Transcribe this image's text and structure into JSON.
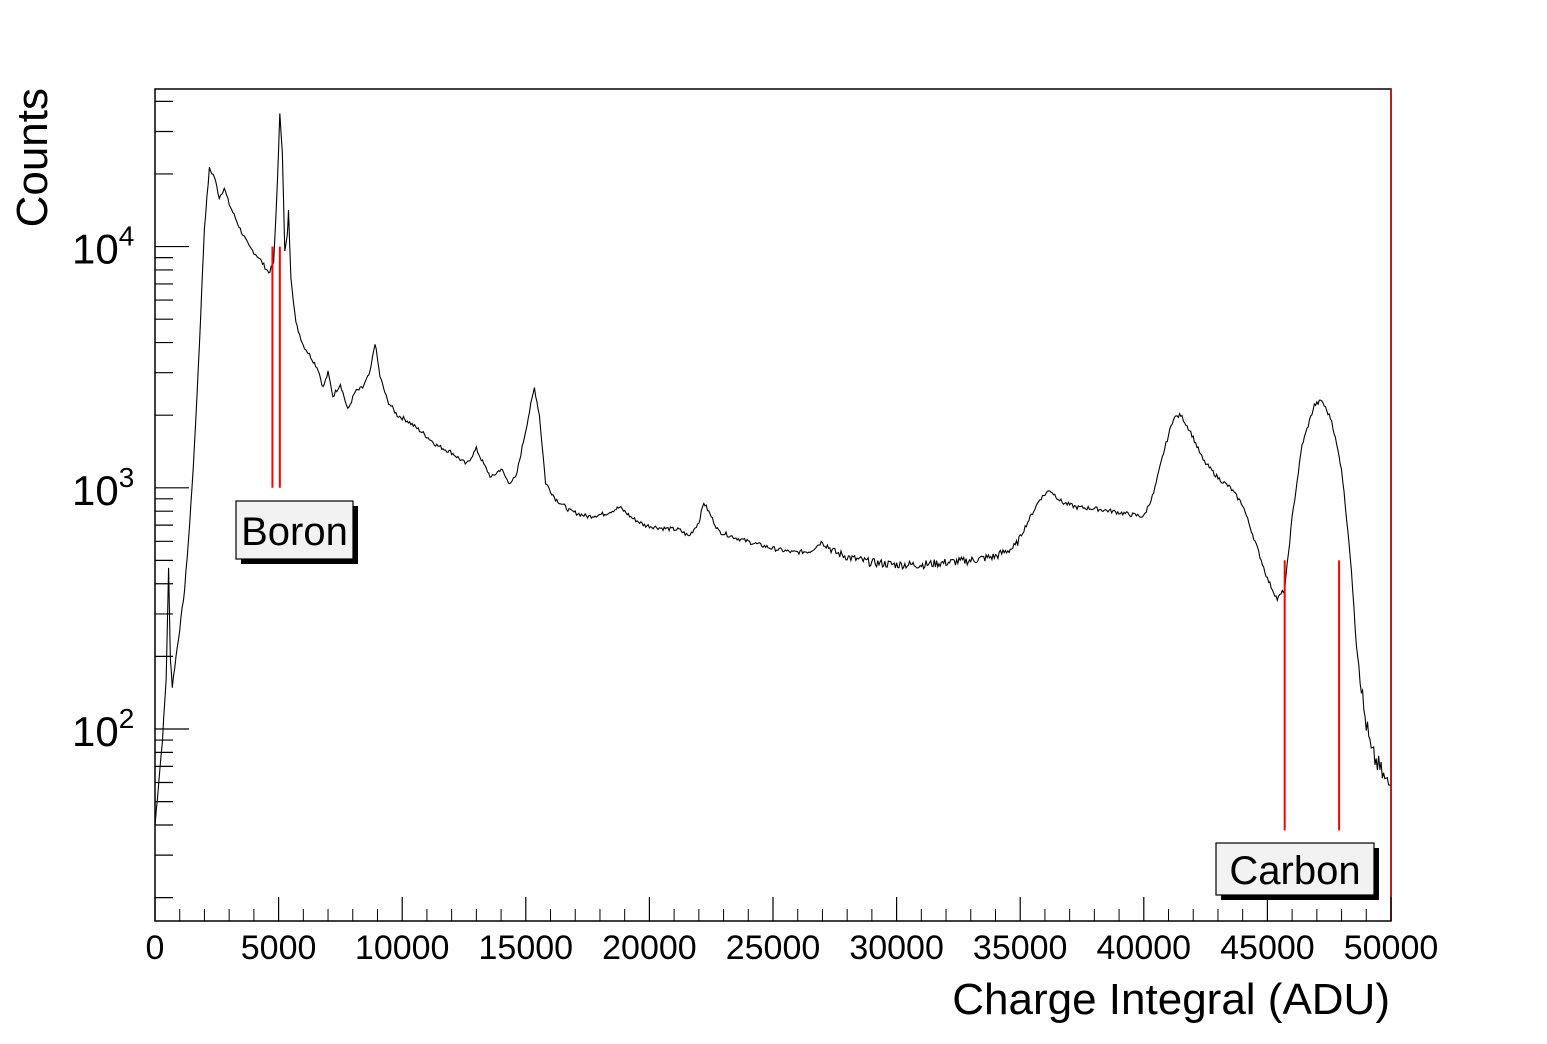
{
  "chart_data": {
    "type": "line",
    "xlabel": "Charge Integral (ADU)",
    "ylabel": "Counts",
    "xlim": [
      0,
      50000
    ],
    "ylim": [
      16,
      45000
    ],
    "yscale": "log",
    "grid": false,
    "x_ticks": [
      0,
      5000,
      10000,
      15000,
      20000,
      25000,
      30000,
      35000,
      40000,
      45000,
      50000
    ],
    "x_tick_labels": [
      "0",
      "5000",
      "10000",
      "15000",
      "20000",
      "25000",
      "30000",
      "35000",
      "40000",
      "45000",
      "50000"
    ],
    "y_decades": [
      {
        "value": 100,
        "base": "10",
        "exp": "2"
      },
      {
        "value": 1000,
        "base": "10",
        "exp": "3"
      },
      {
        "value": 10000,
        "base": "10",
        "exp": "4"
      }
    ],
    "series": [
      {
        "color": "#000000",
        "points": [
          [
            0,
            40
          ],
          [
            150,
            60
          ],
          [
            300,
            90
          ],
          [
            450,
            160
          ],
          [
            550,
            460
          ],
          [
            620,
            200
          ],
          [
            700,
            150
          ],
          [
            850,
            200
          ],
          [
            1000,
            260
          ],
          [
            1200,
            380
          ],
          [
            1400,
            700
          ],
          [
            1600,
            1500
          ],
          [
            1800,
            4000
          ],
          [
            2000,
            12000
          ],
          [
            2200,
            21000
          ],
          [
            2400,
            19500
          ],
          [
            2600,
            16000
          ],
          [
            2800,
            17500
          ],
          [
            3000,
            15000
          ],
          [
            3200,
            13500
          ],
          [
            3500,
            11500
          ],
          [
            3800,
            10000
          ],
          [
            4200,
            9000
          ],
          [
            4600,
            7800
          ],
          [
            4800,
            8500
          ],
          [
            4900,
            14000
          ],
          [
            5000,
            25000
          ],
          [
            5050,
            36000
          ],
          [
            5150,
            25000
          ],
          [
            5250,
            9500
          ],
          [
            5350,
            11000
          ],
          [
            5400,
            14000
          ],
          [
            5500,
            7500
          ],
          [
            5700,
            4800
          ],
          [
            6000,
            3900
          ],
          [
            6300,
            3500
          ],
          [
            6600,
            3100
          ],
          [
            6800,
            2600
          ],
          [
            7000,
            3000
          ],
          [
            7200,
            2400
          ],
          [
            7500,
            2700
          ],
          [
            7800,
            2100
          ],
          [
            8100,
            2500
          ],
          [
            8400,
            2600
          ],
          [
            8700,
            3000
          ],
          [
            8900,
            4000
          ],
          [
            9100,
            2900
          ],
          [
            9400,
            2300
          ],
          [
            9800,
            2000
          ],
          [
            10200,
            1900
          ],
          [
            10800,
            1700
          ],
          [
            11400,
            1500
          ],
          [
            12000,
            1400
          ],
          [
            12600,
            1250
          ],
          [
            13000,
            1450
          ],
          [
            13300,
            1250
          ],
          [
            13600,
            1100
          ],
          [
            14000,
            1200
          ],
          [
            14300,
            1050
          ],
          [
            14600,
            1100
          ],
          [
            14900,
            1550
          ],
          [
            15200,
            2200
          ],
          [
            15350,
            2600
          ],
          [
            15550,
            2000
          ],
          [
            15800,
            1050
          ],
          [
            16200,
            900
          ],
          [
            16800,
            800
          ],
          [
            17500,
            760
          ],
          [
            18200,
            780
          ],
          [
            18800,
            830
          ],
          [
            19300,
            750
          ],
          [
            19800,
            700
          ],
          [
            20500,
            680
          ],
          [
            21200,
            670
          ],
          [
            21600,
            630
          ],
          [
            22000,
            720
          ],
          [
            22200,
            870
          ],
          [
            22500,
            760
          ],
          [
            22800,
            660
          ],
          [
            23500,
            620
          ],
          [
            24200,
            590
          ],
          [
            25000,
            560
          ],
          [
            25800,
            540
          ],
          [
            26500,
            545
          ],
          [
            27000,
            600
          ],
          [
            27500,
            540
          ],
          [
            28200,
            510
          ],
          [
            29000,
            490
          ],
          [
            30000,
            480
          ],
          [
            31000,
            480
          ],
          [
            32000,
            490
          ],
          [
            33000,
            500
          ],
          [
            34000,
            520
          ],
          [
            34800,
            570
          ],
          [
            35300,
            720
          ],
          [
            35800,
            900
          ],
          [
            36200,
            980
          ],
          [
            36700,
            870
          ],
          [
            37300,
            830
          ],
          [
            38000,
            820
          ],
          [
            38700,
            800
          ],
          [
            39300,
            780
          ],
          [
            40000,
            760
          ],
          [
            40400,
            950
          ],
          [
            40800,
            1400
          ],
          [
            41200,
            1950
          ],
          [
            41500,
            2000
          ],
          [
            41900,
            1700
          ],
          [
            42400,
            1300
          ],
          [
            43000,
            1100
          ],
          [
            43500,
            1000
          ],
          [
            44000,
            850
          ],
          [
            44500,
            600
          ],
          [
            45000,
            420
          ],
          [
            45400,
            345
          ],
          [
            45700,
            380
          ],
          [
            46000,
            750
          ],
          [
            46400,
            1500
          ],
          [
            46900,
            2200
          ],
          [
            47200,
            2300
          ],
          [
            47600,
            1900
          ],
          [
            48000,
            1200
          ],
          [
            48300,
            600
          ],
          [
            48600,
            240
          ],
          [
            48900,
            120
          ],
          [
            49200,
            80
          ],
          [
            49500,
            70
          ],
          [
            49800,
            60
          ],
          [
            50000,
            58
          ]
        ]
      }
    ],
    "markers": [
      {
        "label": "Boron",
        "color": "#ff0000",
        "x": [
          4750,
          5050
        ],
        "y_from": 1000,
        "y_to": 10000
      },
      {
        "label": "Carbon",
        "color": "#ff0000",
        "x": [
          45700,
          47900
        ],
        "y_from": 38,
        "y_to": 500
      }
    ],
    "annotations": [
      "Boron",
      "Carbon"
    ]
  }
}
